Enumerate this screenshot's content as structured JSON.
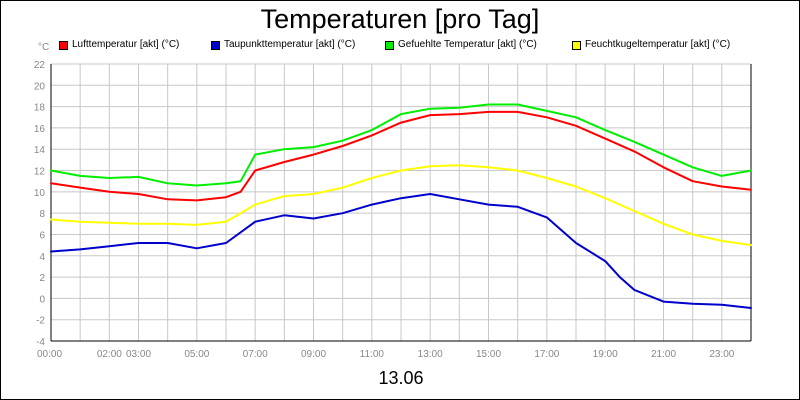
{
  "chart_data": {
    "type": "line",
    "title": "Temperaturen [pro Tag]",
    "unit_label": "°C",
    "date_label": "13.06",
    "xlabel": "",
    "ylabel": "°C",
    "xlim_hours": [
      0,
      24
    ],
    "ylim": [
      -4,
      22
    ],
    "y_ticks": [
      -4,
      -2,
      0,
      2,
      4,
      6,
      8,
      10,
      12,
      14,
      16,
      18,
      20,
      22
    ],
    "x_ticks": [
      {
        "hour": 0,
        "label": "00:00"
      },
      {
        "hour": 2,
        "label": "02:00"
      },
      {
        "hour": 3,
        "label": "03:00"
      },
      {
        "hour": 5,
        "label": "05:00"
      },
      {
        "hour": 7,
        "label": "07:00"
      },
      {
        "hour": 9,
        "label": "09:00"
      },
      {
        "hour": 11,
        "label": "11:00"
      },
      {
        "hour": 13,
        "label": "13:00"
      },
      {
        "hour": 15,
        "label": "15:00"
      },
      {
        "hour": 17,
        "label": "17:00"
      },
      {
        "hour": 19,
        "label": "19:00"
      },
      {
        "hour": 21,
        "label": "21:00"
      },
      {
        "hour": 23,
        "label": "23:00"
      }
    ],
    "grid": true,
    "legend_position": "top",
    "series": [
      {
        "name": "Lufttemperatur [akt] (°C)",
        "color": "#ff0000",
        "x": [
          0,
          1,
          2,
          3,
          4,
          5,
          6,
          6.5,
          7,
          8,
          9,
          10,
          11,
          12,
          13,
          14,
          15,
          16,
          17,
          18,
          19,
          20,
          21,
          22,
          23,
          24
        ],
        "y": [
          10.8,
          10.4,
          10.0,
          9.8,
          9.3,
          9.2,
          9.5,
          10.0,
          12.0,
          12.8,
          13.5,
          14.3,
          15.3,
          16.5,
          17.2,
          17.3,
          17.5,
          17.5,
          17.0,
          16.2,
          15.0,
          13.8,
          12.3,
          11.0,
          10.5,
          10.2
        ]
      },
      {
        "name": "Taupunkttemperatur [akt] (°C)",
        "color": "#0000cc",
        "x": [
          0,
          1,
          2,
          3,
          4,
          5,
          6,
          7,
          8,
          9,
          10,
          11,
          12,
          13,
          14,
          15,
          16,
          17,
          18,
          19,
          19.5,
          20,
          21,
          22,
          23,
          24
        ],
        "y": [
          4.4,
          4.6,
          4.9,
          5.2,
          5.2,
          4.7,
          5.2,
          7.2,
          7.8,
          7.5,
          8.0,
          8.8,
          9.4,
          9.8,
          9.3,
          8.8,
          8.6,
          7.6,
          5.2,
          3.5,
          2.0,
          0.8,
          -0.3,
          -0.5,
          -0.6,
          -0.9
        ]
      },
      {
        "name": "Gefuehlte Temperatur [akt] (°C)",
        "color": "#00ee00",
        "x": [
          0,
          1,
          2,
          3,
          4,
          5,
          6,
          6.5,
          7,
          8,
          9,
          10,
          11,
          12,
          13,
          14,
          15,
          16,
          17,
          18,
          19,
          20,
          21,
          22,
          23,
          24
        ],
        "y": [
          12.0,
          11.5,
          11.3,
          11.4,
          10.8,
          10.6,
          10.8,
          11.0,
          13.5,
          14.0,
          14.2,
          14.8,
          15.8,
          17.3,
          17.8,
          17.9,
          18.2,
          18.2,
          17.6,
          17.0,
          15.8,
          14.7,
          13.5,
          12.3,
          11.5,
          12.0
        ]
      },
      {
        "name": "Feuchtkugeltemperatur [akt] (°C)",
        "color": "#ffff00",
        "x": [
          0,
          1,
          2,
          3,
          4,
          5,
          6,
          7,
          8,
          9,
          10,
          11,
          12,
          13,
          14,
          15,
          16,
          17,
          18,
          19,
          20,
          21,
          22,
          23,
          24
        ],
        "y": [
          7.4,
          7.2,
          7.1,
          7.0,
          7.0,
          6.9,
          7.2,
          8.8,
          9.6,
          9.8,
          10.4,
          11.3,
          12.0,
          12.4,
          12.5,
          12.3,
          12.0,
          11.3,
          10.5,
          9.4,
          8.2,
          7.0,
          6.0,
          5.4,
          5.0
        ]
      }
    ]
  }
}
